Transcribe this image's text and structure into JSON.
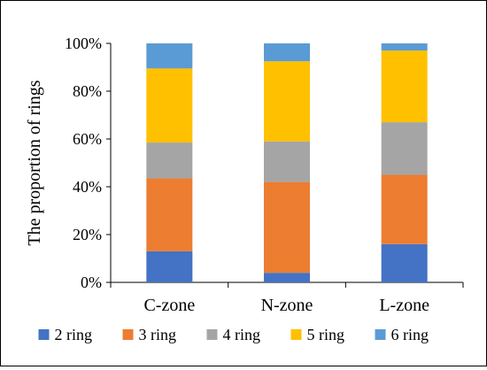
{
  "chart_data": {
    "type": "bar",
    "stacked": true,
    "title": "",
    "xlabel": "",
    "ylabel": "The proportion of rings",
    "ylim": [
      0,
      100
    ],
    "y_tick_labels": [
      "0%",
      "20%",
      "40%",
      "60%",
      "80%",
      "100%"
    ],
    "y_ticks": [
      0,
      20,
      40,
      60,
      80,
      100
    ],
    "categories": [
      "C-zone",
      "N-zone",
      "L-zone"
    ],
    "series": [
      {
        "name": "2 ring",
        "color": "#4472C4",
        "values": [
          13,
          4,
          16
        ]
      },
      {
        "name": "3 ring",
        "color": "#ED7D31",
        "values": [
          30.5,
          38,
          29
        ]
      },
      {
        "name": "4 ring",
        "color": "#A5A5A5",
        "values": [
          15,
          17,
          22
        ]
      },
      {
        "name": "5 ring",
        "color": "#FFC000",
        "values": [
          31,
          33.5,
          30
        ]
      },
      {
        "name": "6 ring",
        "color": "#5B9BD5",
        "values": [
          10.5,
          7.5,
          3
        ]
      }
    ],
    "legend_position": "bottom",
    "grid": false
  }
}
